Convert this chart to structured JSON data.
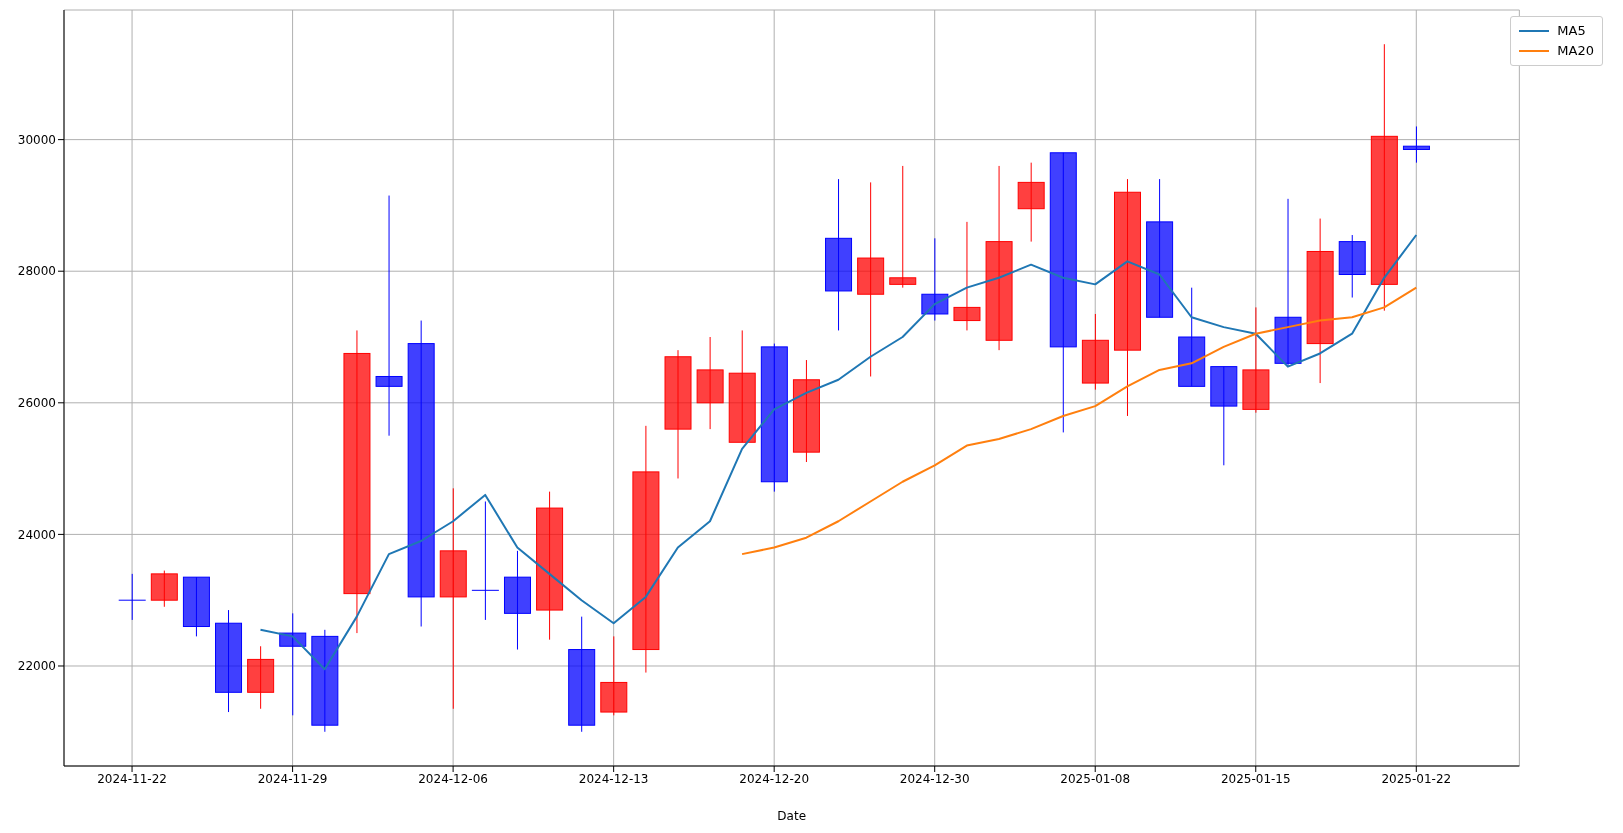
{
  "chart_data": {
    "type": "candlestick",
    "xlabel": "Date",
    "categories": [
      "2024-11-22",
      null,
      null,
      null,
      null,
      "2024-11-29",
      null,
      null,
      null,
      null,
      "2024-12-06",
      null,
      null,
      null,
      null,
      "2024-12-13",
      null,
      null,
      null,
      null,
      "2024-12-20",
      null,
      null,
      null,
      null,
      "2024-12-30",
      null,
      null,
      null,
      null,
      "2025-01-08",
      null,
      null,
      null,
      null,
      "2025-01-15",
      null,
      null,
      null,
      null,
      "2025-01-22"
    ],
    "ohlc": [
      [
        23000,
        23400,
        22700,
        23000
      ],
      [
        23000,
        23450,
        22900,
        23400
      ],
      [
        23350,
        23350,
        22450,
        22600
      ],
      [
        22650,
        22850,
        21300,
        21600
      ],
      [
        21600,
        22300,
        21350,
        22100
      ],
      [
        22500,
        22800,
        21250,
        22300
      ],
      [
        22450,
        22550,
        21000,
        21100
      ],
      [
        23100,
        27100,
        22500,
        26750
      ],
      [
        26400,
        29150,
        25500,
        26250
      ],
      [
        26900,
        27250,
        22600,
        23050
      ],
      [
        23050,
        24700,
        21350,
        23750
      ],
      [
        23150,
        24500,
        22700,
        23150
      ],
      [
        23350,
        23750,
        22250,
        22800
      ],
      [
        22850,
        24650,
        22400,
        24400
      ],
      [
        22250,
        22750,
        21000,
        21100
      ],
      [
        21300,
        22450,
        21250,
        21750
      ],
      [
        22250,
        25650,
        21900,
        24950
      ],
      [
        25600,
        26800,
        24850,
        26700
      ],
      [
        26000,
        27000,
        25600,
        26500
      ],
      [
        25400,
        27100,
        25400,
        26450
      ],
      [
        26850,
        26900,
        24650,
        24800
      ],
      [
        25250,
        26650,
        25100,
        26350
      ],
      [
        28500,
        29400,
        27100,
        27700
      ],
      [
        27650,
        29350,
        26400,
        28200
      ],
      [
        27800,
        29600,
        27750,
        27900
      ],
      [
        27650,
        28500,
        27250,
        27350
      ],
      [
        27250,
        28750,
        27100,
        27450
      ],
      [
        26950,
        29600,
        26800,
        28450
      ],
      [
        28950,
        29650,
        28450,
        29350
      ],
      [
        29800,
        29800,
        25550,
        26850
      ],
      [
        26300,
        27350,
        26200,
        26950
      ],
      [
        26800,
        29400,
        25800,
        29200
      ],
      [
        28750,
        29400,
        27300,
        27300
      ],
      [
        27000,
        27750,
        26250,
        26250
      ],
      [
        26550,
        26550,
        25050,
        25950
      ],
      [
        25900,
        27450,
        25850,
        26500
      ],
      [
        27300,
        29100,
        26550,
        26600
      ],
      [
        26900,
        28800,
        26300,
        28300
      ],
      [
        28450,
        28550,
        27600,
        27950
      ],
      [
        27800,
        31450,
        27400,
        30050
      ],
      [
        29900,
        30200,
        29650,
        29850
      ]
    ],
    "colors": [
      "#0000ff",
      "#ff0000",
      "#0000ff",
      "#0000ff",
      "#ff0000",
      "#0000ff",
      "#0000ff",
      "#ff0000",
      "#0000ff",
      "#0000ff",
      "#ff0000",
      "#0000ff",
      "#0000ff",
      "#ff0000",
      "#0000ff",
      "#ff0000",
      "#ff0000",
      "#ff0000",
      "#ff0000",
      "#ff0000",
      "#0000ff",
      "#ff0000",
      "#0000ff",
      "#ff0000",
      "#ff0000",
      "#0000ff",
      "#ff0000",
      "#ff0000",
      "#ff0000",
      "#0000ff",
      "#ff0000",
      "#ff0000",
      "#0000ff",
      "#0000ff",
      "#0000ff",
      "#ff0000",
      "#0000ff",
      "#ff0000",
      "#0000ff",
      "#ff0000",
      "#0000ff"
    ],
    "series": [
      {
        "name": "MA5",
        "type": "line",
        "color": "#1f77b4",
        "values": [
          null,
          null,
          null,
          null,
          22550,
          22450,
          21950,
          22750,
          23700,
          23900,
          24200,
          24600,
          23800,
          23400,
          23000,
          22650,
          23050,
          23800,
          24200,
          25300,
          25900,
          26150,
          26350,
          26700,
          27000,
          27500,
          27750,
          27900,
          28100,
          27900,
          27800,
          28150,
          27950,
          27300,
          27150,
          27050,
          26550,
          26750,
          27050,
          27900,
          28550
        ]
      },
      {
        "name": "MA20",
        "type": "line",
        "color": "#ff7f0e",
        "values": [
          null,
          null,
          null,
          null,
          null,
          null,
          null,
          null,
          null,
          null,
          null,
          null,
          null,
          null,
          null,
          null,
          null,
          null,
          null,
          23700,
          23800,
          23950,
          24200,
          24500,
          24800,
          25050,
          25350,
          25450,
          25600,
          25800,
          25950,
          26250,
          26500,
          26600,
          26850,
          27050,
          27150,
          27250,
          27300,
          27450,
          27750
        ]
      }
    ],
    "ylim": [
      20480,
      31970
    ],
    "yticks": [
      22000,
      24000,
      26000,
      28000,
      30000
    ],
    "grid": true,
    "legend": "top right"
  }
}
